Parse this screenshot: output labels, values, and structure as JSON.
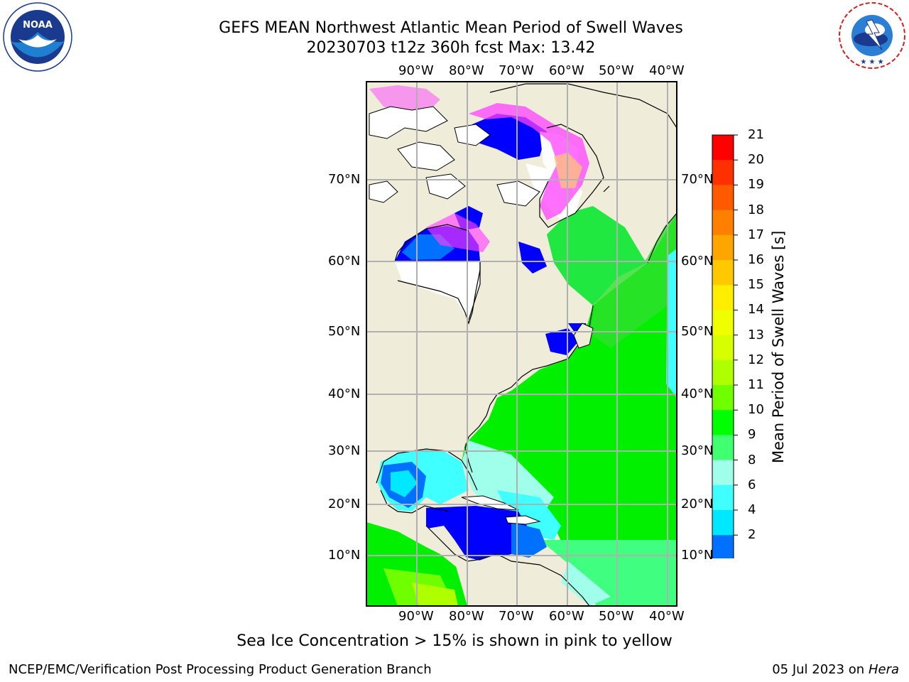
{
  "header": {
    "title_line1": "GEFS MEAN Northwest Atlantic Mean Period of Swell Waves",
    "title_line2": "20230703 t12z 360h fcst   Max: 13.42"
  },
  "logos": {
    "noaa": {
      "text": "NOAA",
      "ring_text": "NATIONAL OCEANIC AND ATMOSPHERIC ADMINISTRATION · U.S. DEPARTMENT OF COMMERCE"
    },
    "nws": {
      "ring_text": "NATIONAL WEATHER SERVICE"
    }
  },
  "map": {
    "lon_labels": [
      "90°W",
      "80°W",
      "70°W",
      "60°W",
      "50°W",
      "40°W"
    ],
    "lat_labels": [
      "70°N",
      "60°N",
      "50°N",
      "40°N",
      "30°N",
      "20°N",
      "10°N"
    ],
    "colors": {
      "land": "#efedda",
      "ice_free_land": "#ffffff",
      "grid": "#b0b0b0"
    }
  },
  "colorbar": {
    "title": "Mean Period of Swell Waves [s]",
    "ticks": [
      "21",
      "20",
      "19",
      "18",
      "17",
      "16",
      "15",
      "14",
      "13",
      "12",
      "11",
      "10",
      "9",
      "8",
      "6",
      "4",
      "2"
    ],
    "colors": [
      "#ff0000",
      "#ff3000",
      "#ff5a00",
      "#ff8000",
      "#ffa500",
      "#ffc800",
      "#ffee00",
      "#f0ff00",
      "#d7ff00",
      "#b0ff00",
      "#70ff00",
      "#00ff00",
      "#40ff70",
      "#a0ffea",
      "#40ffff",
      "#00e8ff",
      "#0070ff"
    ],
    "extend_color": "#0000ff"
  },
  "caption": "Sea Ice Concentration > 15% is shown in pink to yellow",
  "footer": {
    "left": "NCEP/EMC/Verification Post Processing Product Generation Branch",
    "right_date": "05 Jul 2023 on ",
    "right_host": "Hera"
  }
}
